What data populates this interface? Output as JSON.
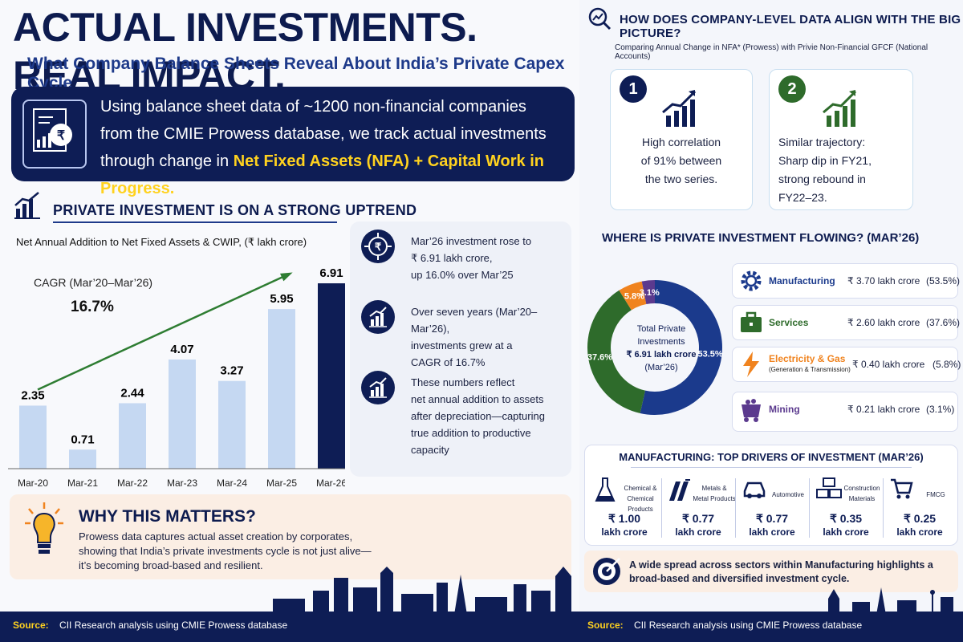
{
  "header": {
    "title": "ACTUAL INVESTMENTS. REAL IMPACT.",
    "subtitle": "What Company Balance Sheets Reveal About India’s Private Capex Cycle"
  },
  "intro": {
    "line1": "Using balance sheet data of ~1200 non-financial companies",
    "line2": "from the CMIE Prowess database, we track actual investments",
    "line3_prefix": "through change in ",
    "line3_highlight": "Net Fixed Assets (NFA) + Capital Work in Progress."
  },
  "uptrend": {
    "heading": "PRIVATE INVESTMENT IS ON A STRONG UPTREND",
    "chart_caption": "Net Annual Addition to Net Fixed Assets & CWIP, (₹ lakh crore)",
    "cagr_label": "CAGR (Mar’20–Mar’26)",
    "cagr_value": "16.7%"
  },
  "chart_data": {
    "type": "bar",
    "categories": [
      "Mar-20",
      "Mar-21",
      "Mar-22",
      "Mar-23",
      "Mar-24",
      "Mar-25",
      "Mar-26"
    ],
    "values": [
      2.35,
      0.71,
      2.44,
      4.07,
      3.27,
      5.95,
      6.91
    ],
    "value_labels": [
      "2.35",
      "0.71",
      "2.44",
      "4.07",
      "3.27",
      "5.95",
      "6.91"
    ],
    "ylim": [
      0,
      7.3
    ],
    "colors": {
      "bar": "#c5d8f2",
      "highlight": "#0e1d55",
      "trend": "#2e7d32"
    }
  },
  "facts": [
    {
      "icon": "rupee-target-icon",
      "lines": [
        "Mar’26 investment rose to",
        "₹ 6.91 lakh crore,",
        "up 16.0% over Mar’25"
      ]
    },
    {
      "icon": "growth-chart-icon",
      "lines": [
        "Over seven years (Mar’20–Mar’26),",
        "investments grew at a",
        "CAGR of 16.7%"
      ]
    },
    {
      "icon": "growth-chart-icon",
      "lines": [
        "These numbers reflect",
        "net annual addition to assets",
        "after depreciation—capturing",
        "true addition to productive",
        "capacity"
      ]
    }
  ],
  "why": {
    "heading": "WHY THIS MATTERS?",
    "line1": "Prowess data captures actual asset creation by corporates,",
    "line2": "showing that India’s private investments cycle is not just alive—",
    "line3": "it’s becoming broad-based and resilient."
  },
  "source_left": {
    "label": "Source:",
    "text": "CII Research analysis using CMIE Prowess database"
  },
  "alignment": {
    "heading": "HOW DOES COMPANY-LEVEL DATA ALIGN WITH THE BIG PICTURE?",
    "subheading": "Comparing Annual Change in NFA* (Prowess) with Privie Non-Financial GFCF (National Accounts)",
    "cards": [
      {
        "num": "1",
        "lines": [
          "High correlation",
          "of 91% between",
          "the two series."
        ]
      },
      {
        "num": "2",
        "lines": [
          "Similar trajectory:",
          "Sharp dip in FY21,",
          "strong rebound in",
          "FY22–23."
        ]
      }
    ]
  },
  "flow": {
    "heading": "WHERE IS PRIVATE INVESTMENT FLOWING? (MAR’26)",
    "donut_center": [
      "Total Private",
      "Investments",
      "₹ 6.91 lakh crore",
      "(Mar’26)"
    ],
    "slices": [
      {
        "label": "53.5%",
        "value": 53.5,
        "color": "#1b3a8c"
      },
      {
        "label": "37.6%",
        "value": 37.6,
        "color": "#2e6b2b"
      },
      {
        "label": "5.8%",
        "value": 5.8,
        "color": "#f0831e"
      },
      {
        "label": "3.1%",
        "value": 3.1,
        "color": "#5b3a8e"
      }
    ],
    "sectors": [
      {
        "name": "Manufacturing",
        "sub": "",
        "value": "₹ 3.70 lakh crore",
        "pct": "(53.5%)",
        "icon": "gear-icon",
        "color": "#1b3a8c"
      },
      {
        "name": "Services",
        "sub": "",
        "value": "₹ 2.60 lakh crore",
        "pct": "(37.6%)",
        "icon": "briefcase-icon",
        "color": "#2e6b2b"
      },
      {
        "name": "Electricity & Gas",
        "sub": "(Generation & Transmission)",
        "value": "₹ 0.40 lakh crore",
        "pct": "(5.8%)",
        "icon": "lightning-icon",
        "color": "#f0831e"
      },
      {
        "name": "Mining",
        "sub": "",
        "value": "₹ 0.21 lakh crore",
        "pct": "(3.1%)",
        "icon": "mining-cart-icon",
        "color": "#5b3a8e"
      }
    ]
  },
  "drivers": {
    "heading": "MANUFACTURING: TOP DRIVERS OF INVESTMENT (MAR’26)",
    "items": [
      {
        "name1": "Chemical &",
        "name2": "Chemical Products",
        "value": "₹ 1.00",
        "unit": "lakh crore",
        "icon": "flask-icon"
      },
      {
        "name1": "Metals &",
        "name2": "Metal Products",
        "value": "₹ 0.77",
        "unit": "lakh crore",
        "icon": "metal-bars-icon"
      },
      {
        "name1": "Automotive",
        "name2": "",
        "value": "₹ 0.77",
        "unit": "lakh crore",
        "icon": "car-icon"
      },
      {
        "name1": "Construction",
        "name2": "Materials",
        "value": "₹ 0.35",
        "unit": "lakh crore",
        "icon": "bricks-icon"
      },
      {
        "name1": "FMCG",
        "name2": "",
        "value": "₹ 0.25",
        "unit": "lakh crore",
        "icon": "shopping-cart-icon"
      }
    ],
    "footer_line1": "A wide spread across sectors within Manufacturing highlights a",
    "footer_line2": "broad-based and diversified investment cycle."
  },
  "source_right": {
    "label": "Source:",
    "text": "CII Research analysis using CMIE Prowess database"
  }
}
